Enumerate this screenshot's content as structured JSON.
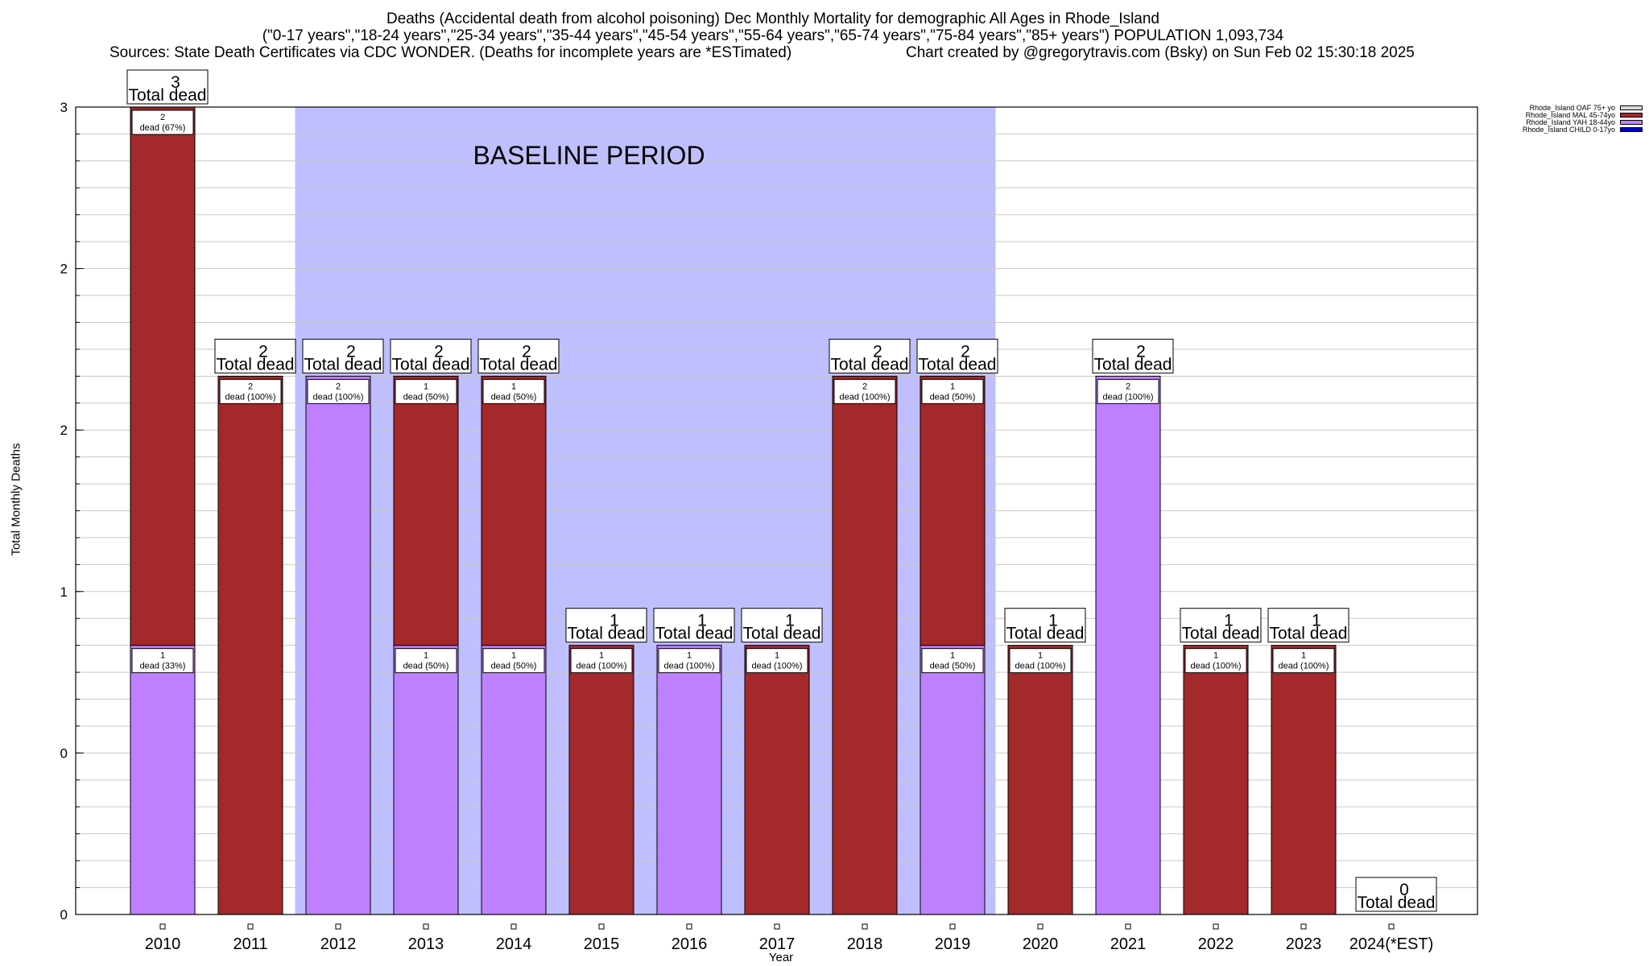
{
  "title": {
    "line1": "Deaths (Accidental death from alcohol poisoning) Dec Monthly Mortality for demographic All Ages in Rhode_Island",
    "line2": "(\"0-17 years\",\"18-24 years\",\"25-34 years\",\"35-44 years\",\"45-54 years\",\"55-64 years\",\"65-74 years\",\"75-84 years\",\"85+ years\") POPULATION 1,093,734",
    "sources": "Sources: State Death Certificates via CDC WONDER. (Deaths for incomplete years are *ESTimated)",
    "credit": "Chart created by @gregorytravis.com (Bsky) on Sun Feb 02 15:30:18 2025"
  },
  "colors": {
    "OAF": "#d9d9d9",
    "MAL": "#a3292b",
    "YAH": "#bf80ff",
    "CHILD": "#0000cc",
    "baseline": "#bfbfff"
  },
  "legend": [
    {
      "label": "Rhode_Island OAF 75+ yo",
      "color_key": "OAF"
    },
    {
      "label": "Rhode_Island MAL 45-74yo",
      "color_key": "MAL"
    },
    {
      "label": "Rhode_Island YAH 18-44yo",
      "color_key": "YAH"
    },
    {
      "label": "Rhode_Island CHILD 0-17yo",
      "color_key": "CHILD"
    }
  ],
  "chart_data": {
    "type": "bar",
    "stacked": true,
    "xlabel": "Year",
    "ylabel": "Total Monthly Deaths",
    "ylim": [
      0,
      3
    ],
    "ytick_labels": [
      "0",
      "0",
      "1",
      "2",
      "2",
      "3"
    ],
    "grid": true,
    "legend_position": "top-right",
    "baseline_label": "BASELINE PERIOD",
    "baseline_range": [
      "2012",
      "2019"
    ],
    "total_word": "Total dead",
    "categories": [
      "2010",
      "2011",
      "2012",
      "2013",
      "2014",
      "2015",
      "2016",
      "2017",
      "2018",
      "2019",
      "2020",
      "2021",
      "2022",
      "2023",
      "2024(*EST)"
    ],
    "series": [
      {
        "name": "Rhode_Island YAH 18-44yo",
        "color_key": "YAH",
        "values": [
          1,
          0,
          2,
          1,
          1,
          0,
          1,
          0,
          0,
          1,
          0,
          2,
          0,
          0,
          0
        ],
        "labels": [
          "1\ndead (33%)",
          "",
          "2\ndead (100%)",
          "1\ndead (50%)",
          "1\ndead (50%)",
          "",
          "1\ndead (100%)",
          "",
          "",
          "1\ndead (50%)",
          "",
          "2\ndead (100%)",
          "",
          "",
          ""
        ]
      },
      {
        "name": "Rhode_Island MAL 45-74yo",
        "color_key": "MAL",
        "values": [
          2,
          2,
          0,
          1,
          1,
          1,
          0,
          1,
          2,
          1,
          1,
          0,
          1,
          1,
          0
        ],
        "labels": [
          "2\ndead (67%)",
          "2\ndead (100%)",
          "",
          "1\ndead (50%)",
          "1\ndead (50%)",
          "1\ndead (100%)",
          "",
          "1\ndead (100%)",
          "2\ndead (100%)",
          "1\ndead (50%)",
          "1\ndead (100%)",
          "",
          "1\ndead (100%)",
          "1\ndead (100%)",
          ""
        ]
      }
    ],
    "totals": [
      3,
      2,
      2,
      2,
      2,
      1,
      1,
      1,
      2,
      2,
      1,
      2,
      1,
      1,
      0
    ]
  }
}
